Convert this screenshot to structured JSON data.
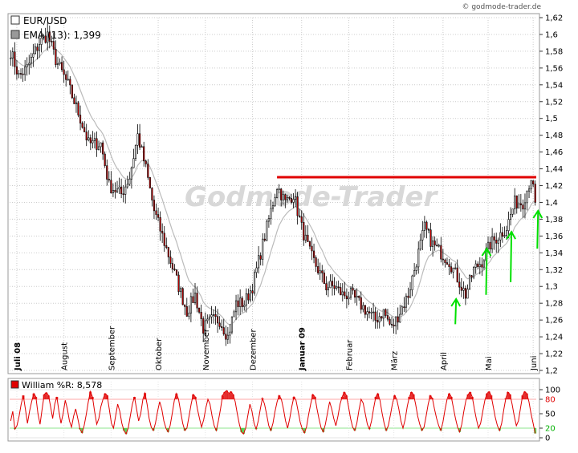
{
  "credit": "© godmode-trader.de",
  "watermark": "Godmode-Trader",
  "colors": {
    "candle_up": "#ffffff",
    "candle_down": "#cc0000",
    "ema_line": "#bbbbbb",
    "resistance": "#e00000",
    "arrows": "#00e000",
    "williams_line": "#e00000",
    "williams_fill_over": "#e00000",
    "williams_fill_under": "#33cc33",
    "grid": "#cccccc"
  },
  "chart_data": [
    {
      "type": "candlestick",
      "series": [
        {
          "name": "EUR/USD",
          "legend_label": "EUR/USD",
          "swatch": "#ffffff"
        },
        {
          "name": "EMA (13)",
          "legend_label": "EMA (13): 1,399",
          "swatch": "#999999"
        }
      ],
      "y_ticks": [
        "1,2",
        "1,22",
        "1,24",
        "1,26",
        "1,28",
        "1,3",
        "1,32",
        "1,34",
        "1,36",
        "1,38",
        "1,4",
        "1,42",
        "1,44",
        "1,46",
        "1,48",
        "1,5",
        "1,52",
        "1,54",
        "1,56",
        "1,58",
        "1,6",
        "1,62"
      ],
      "ylim": [
        1.2,
        1.62
      ],
      "x_labels": [
        {
          "label": "Juli 08",
          "bold": true
        },
        {
          "label": "August",
          "bold": false
        },
        {
          "label": "September",
          "bold": false
        },
        {
          "label": "Oktober",
          "bold": false
        },
        {
          "label": "November",
          "bold": false
        },
        {
          "label": "Dezember",
          "bold": false
        },
        {
          "label": "Januar 09",
          "bold": true
        },
        {
          "label": "Februar",
          "bold": false
        },
        {
          "label": "März",
          "bold": false
        },
        {
          "label": "April",
          "bold": false
        },
        {
          "label": "Mai",
          "bold": false
        },
        {
          "label": "Juni",
          "bold": false
        }
      ],
      "x_label_days": [
        3,
        26,
        49,
        72,
        95,
        118,
        142,
        165,
        187,
        211,
        233,
        255
      ],
      "anchors": [
        [
          0,
          1.58
        ],
        [
          4,
          1.55
        ],
        [
          8,
          1.56
        ],
        [
          14,
          1.59
        ],
        [
          18,
          1.6
        ],
        [
          22,
          1.57
        ],
        [
          28,
          1.54
        ],
        [
          34,
          1.5
        ],
        [
          38,
          1.47
        ],
        [
          44,
          1.47
        ],
        [
          48,
          1.42
        ],
        [
          54,
          1.41
        ],
        [
          58,
          1.43
        ],
        [
          62,
          1.48
        ],
        [
          66,
          1.44
        ],
        [
          70,
          1.39
        ],
        [
          74,
          1.36
        ],
        [
          78,
          1.33
        ],
        [
          82,
          1.3
        ],
        [
          86,
          1.27
        ],
        [
          90,
          1.29
        ],
        [
          94,
          1.25
        ],
        [
          98,
          1.26
        ],
        [
          102,
          1.26
        ],
        [
          106,
          1.24
        ],
        [
          110,
          1.28
        ],
        [
          114,
          1.28
        ],
        [
          118,
          1.3
        ],
        [
          122,
          1.34
        ],
        [
          126,
          1.38
        ],
        [
          130,
          1.42
        ],
        [
          134,
          1.4
        ],
        [
          138,
          1.41
        ],
        [
          142,
          1.37
        ],
        [
          146,
          1.34
        ],
        [
          150,
          1.32
        ],
        [
          154,
          1.3
        ],
        [
          158,
          1.3
        ],
        [
          162,
          1.29
        ],
        [
          166,
          1.29
        ],
        [
          170,
          1.28
        ],
        [
          174,
          1.27
        ],
        [
          178,
          1.26
        ],
        [
          182,
          1.27
        ],
        [
          186,
          1.25
        ],
        [
          190,
          1.27
        ],
        [
          194,
          1.29
        ],
        [
          198,
          1.33
        ],
        [
          202,
          1.37
        ],
        [
          206,
          1.35
        ],
        [
          210,
          1.34
        ],
        [
          214,
          1.33
        ],
        [
          218,
          1.31
        ],
        [
          222,
          1.29
        ],
        [
          226,
          1.32
        ],
        [
          230,
          1.33
        ],
        [
          234,
          1.35
        ],
        [
          238,
          1.36
        ],
        [
          242,
          1.37
        ],
        [
          246,
          1.4
        ],
        [
          250,
          1.4
        ],
        [
          254,
          1.43
        ],
        [
          256,
          1.4
        ]
      ],
      "resistance": {
        "y": 1.43,
        "from_day": 130,
        "to_day": 260
      },
      "arrows": [
        {
          "day": 217,
          "from": 1.255,
          "to": 1.285
        },
        {
          "day": 232,
          "from": 1.29,
          "to": 1.345
        },
        {
          "day": 244,
          "from": 1.305,
          "to": 1.365
        },
        {
          "day": 257,
          "from": 1.345,
          "to": 1.39
        }
      ]
    },
    {
      "type": "line",
      "series": [
        {
          "name": "William %R",
          "legend_label": "William %R: 8,578"
        }
      ],
      "y_ticks": [
        {
          "v": 100,
          "label": "100",
          "color": "#000000"
        },
        {
          "v": 80,
          "label": "80",
          "color": "#e00000"
        },
        {
          "v": 50,
          "label": "50",
          "color": "#000000"
        },
        {
          "v": 20,
          "label": "20",
          "color": "#00b000"
        },
        {
          "v": 0,
          "label": "0",
          "color": "#000000"
        }
      ],
      "ylim": [
        0,
        100
      ],
      "values": [
        35,
        55,
        18,
        25,
        45,
        70,
        88,
        60,
        30,
        55,
        75,
        92,
        85,
        50,
        28,
        60,
        90,
        94,
        88,
        65,
        40,
        70,
        85,
        55,
        30,
        50,
        78,
        60,
        35,
        22,
        45,
        60,
        40,
        18,
        10,
        25,
        48,
        75,
        96,
        85,
        55,
        28,
        40,
        65,
        80,
        92,
        88,
        60,
        30,
        20,
        45,
        70,
        55,
        30,
        15,
        8,
        20,
        45,
        70,
        85,
        60,
        35,
        50,
        80,
        93,
        70,
        40,
        22,
        15,
        30,
        55,
        75,
        60,
        35,
        20,
        12,
        25,
        50,
        78,
        92,
        80,
        55,
        30,
        15,
        20,
        45,
        70,
        90,
        85,
        60,
        40,
        22,
        38,
        62,
        80,
        70,
        45,
        25,
        15,
        35,
        60,
        88,
        95,
        98,
        92,
        96,
        90,
        75,
        50,
        28,
        12,
        8,
        20,
        45,
        70,
        55,
        30,
        18,
        35,
        60,
        82,
        70,
        48,
        25,
        15,
        30,
        55,
        75,
        88,
        80,
        60,
        35,
        20,
        40,
        65,
        85,
        78,
        55,
        32,
        18,
        10,
        22,
        48,
        70,
        90,
        85,
        60,
        38,
        20,
        12,
        28,
        52,
        75,
        60,
        40,
        25,
        45,
        70,
        85,
        95,
        88,
        65,
        40,
        22,
        15,
        30,
        58,
        80,
        72,
        50,
        28,
        18,
        35,
        62,
        85,
        92,
        78,
        52,
        30,
        15,
        25,
        48,
        72,
        88,
        80,
        60,
        35,
        20,
        38,
        65,
        85,
        95,
        90,
        70,
        45,
        28,
        15,
        22,
        45,
        70,
        88,
        82,
        60,
        40,
        25,
        15,
        32,
        58,
        80,
        92,
        85,
        62,
        40,
        22,
        12,
        28,
        55,
        78,
        90,
        95,
        85,
        60,
        38,
        20,
        30,
        55,
        78,
        92,
        96,
        88,
        65,
        42,
        25,
        15,
        30,
        58,
        82,
        95,
        90,
        70,
        45,
        25,
        35,
        62,
        88,
        96,
        92,
        75,
        50,
        30,
        9
      ]
    }
  ]
}
